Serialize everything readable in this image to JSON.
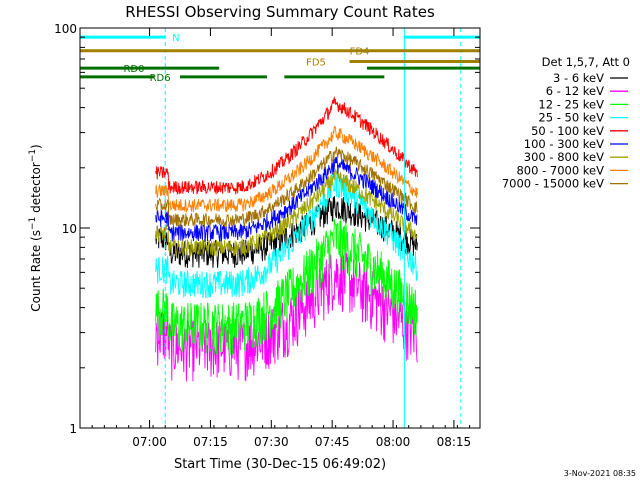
{
  "chart_data": {
    "type": "line",
    "title": "RHESSI Observing Summary Count Rates",
    "xlabel": "Start Time (30-Dec-15 06:49:02)",
    "ylabel_main": "Count Rate (s",
    "ylabel_sup1": "−1",
    "ylabel_mid": " detector",
    "ylabel_sup2": "−1",
    "ylabel_end": ")",
    "yscale": "log",
    "ylim": [
      1,
      100
    ],
    "xlim_minutes": [
      -8,
      38
    ],
    "x_ticks": [
      {
        "m": 0,
        "label": "07:00"
      },
      {
        "m": 7,
        "label": "07:15"
      },
      {
        "m": 14,
        "label": "07:30"
      },
      {
        "m": 21,
        "label": "07:45"
      },
      {
        "m": 28,
        "label": "08:00"
      },
      {
        "m": 35,
        "label": "08:15"
      }
    ],
    "y_ticks": [
      {
        "v": 100,
        "label": "100"
      },
      {
        "v": 10,
        "label": "10"
      },
      {
        "v": 1,
        "label": "1"
      }
    ],
    "legend_header": "Det 1,5,7, Att 0",
    "legend_placement": "right",
    "series": [
      {
        "name": "3 - 6 keV",
        "color": "#000000",
        "base": 7.5,
        "peak": 13,
        "p": 0.65,
        "noise": 0.16,
        "ofs": 0
      },
      {
        "name": "6 - 12 keV",
        "color": "#ff00ff",
        "base": 2.6,
        "peak": 6,
        "p": 0.55,
        "noise": 0.35,
        "ofs": 0
      },
      {
        "name": "12 - 25 keV",
        "color": "#00ff00",
        "base": 3.3,
        "peak": 9,
        "p": 0.75,
        "noise": 0.3,
        "ofs": 0
      },
      {
        "name": "25 - 50 keV",
        "color": "#00ffff",
        "base": 5.3,
        "peak": 17,
        "p": 0.85,
        "noise": 0.16,
        "ofs": 0
      },
      {
        "name": "50 - 100 keV",
        "color": "#ff0000",
        "base": 16,
        "peak": 42,
        "p": 0.5,
        "noise": 0.08,
        "ofs": 0
      },
      {
        "name": "100 - 300 keV",
        "color": "#0000ff",
        "base": 9.5,
        "peak": 21,
        "p": 0.55,
        "noise": 0.1,
        "ofs": 0
      },
      {
        "name": "300 - 800 keV",
        "color": "#a0a000",
        "base": 8,
        "peak": 18,
        "p": 0.6,
        "noise": 0.1,
        "ofs": 0
      },
      {
        "name": "800 - 7000 keV",
        "color": "#ff8000",
        "base": 13,
        "peak": 30,
        "p": 0.5,
        "noise": 0.08,
        "ofs": 0
      },
      {
        "name": "7000 - 15000 keV",
        "color": "#a07000",
        "base": 11,
        "peak": 24,
        "p": 0.55,
        "noise": 0.08,
        "ofs": 0
      }
    ],
    "data_start_minute": 0.7,
    "data_end_minute": 30.8,
    "peak_minute": 21.3,
    "rise_start_minute": 10,
    "annotations": [
      {
        "label": "N",
        "color": "#00ffff",
        "segments": [
          [
            -8,
            1.8
          ],
          [
            29.3,
            38
          ]
        ],
        "level": 90
      },
      {
        "label": "FD4",
        "color": "#a08000",
        "segments": [
          [
            -8,
            38
          ]
        ],
        "level": 77
      },
      {
        "label": "FD5",
        "color": "#a08000",
        "segments": [
          [
            23,
            38
          ]
        ],
        "level": 68
      },
      {
        "label": "RD0",
        "color": "#007000",
        "segments": [
          [
            -8,
            8
          ],
          [
            25,
            38
          ]
        ],
        "level": 63
      },
      {
        "label": "RD6",
        "color": "#007000",
        "segments": [
          [
            -8,
            0.5
          ],
          [
            3.5,
            13.5
          ],
          [
            15.5,
            27
          ]
        ],
        "level": 57
      }
    ],
    "vlines_dashed_minutes": [
      1.8,
      35.8
    ],
    "vlines_solid_minutes": [
      29.3
    ],
    "footer_date": "3-Nov-2021 08:35"
  }
}
